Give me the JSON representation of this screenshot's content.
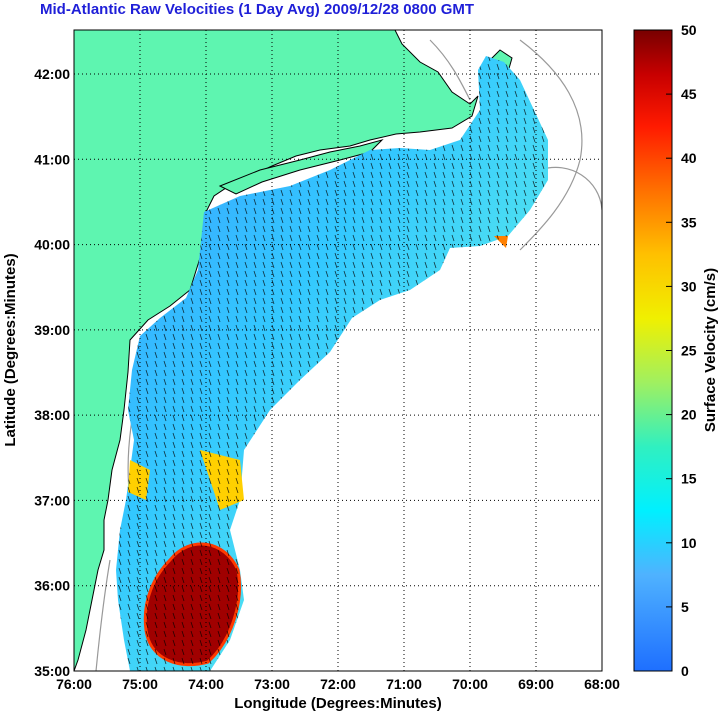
{
  "title": "Mid-Atlantic Raw Velocities (1 Day Avg) 2009/12/28 0800 GMT",
  "axes": {
    "xlabel": "Longitude (Degrees:Minutes)",
    "ylabel": "Latitude (Degrees:Minutes)",
    "xticks": [
      "76:00",
      "75:00",
      "74:00",
      "73:00",
      "72:00",
      "71:00",
      "70:00",
      "69:00",
      "68:00"
    ],
    "yticks": [
      "42:00",
      "41:00",
      "40:00",
      "39:00",
      "38:00",
      "37:00",
      "36:00",
      "35:00"
    ]
  },
  "colorbar": {
    "label": "Surface Velocity (cm/s)",
    "ticks": [
      "50",
      "45",
      "40",
      "35",
      "30",
      "25",
      "20",
      "15",
      "10",
      "5",
      "0"
    ],
    "range": [
      0,
      50
    ]
  },
  "colors": {
    "land": "#5ef5b0",
    "coast": "#000000",
    "bathymetry": "#999999",
    "grid": "#000000"
  }
}
